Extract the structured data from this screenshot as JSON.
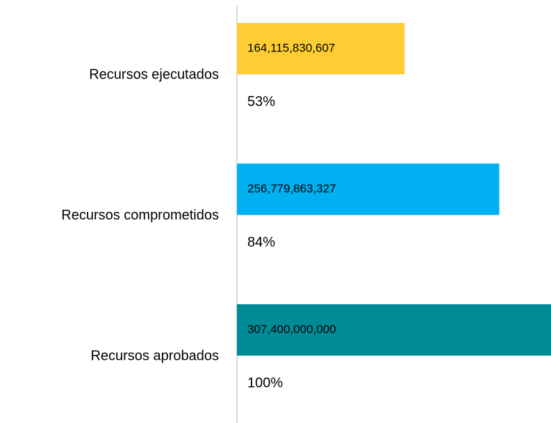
{
  "chart_data": {
    "type": "hbar",
    "categories": [
      "Recursos ejecutados",
      "Recursos comprometidos",
      "Recursos aprobados"
    ],
    "values": [
      164115830607,
      256779863327,
      307400000000
    ],
    "value_labels": [
      "164,115,830,607",
      "256,779,863,327",
      "307,400,000,000"
    ],
    "share_labels": [
      "53%",
      "84%",
      "100%"
    ],
    "colors": [
      "#ffcd33",
      "#00b0f0",
      "#008c96"
    ],
    "xlim": [
      0,
      307400000000
    ]
  }
}
